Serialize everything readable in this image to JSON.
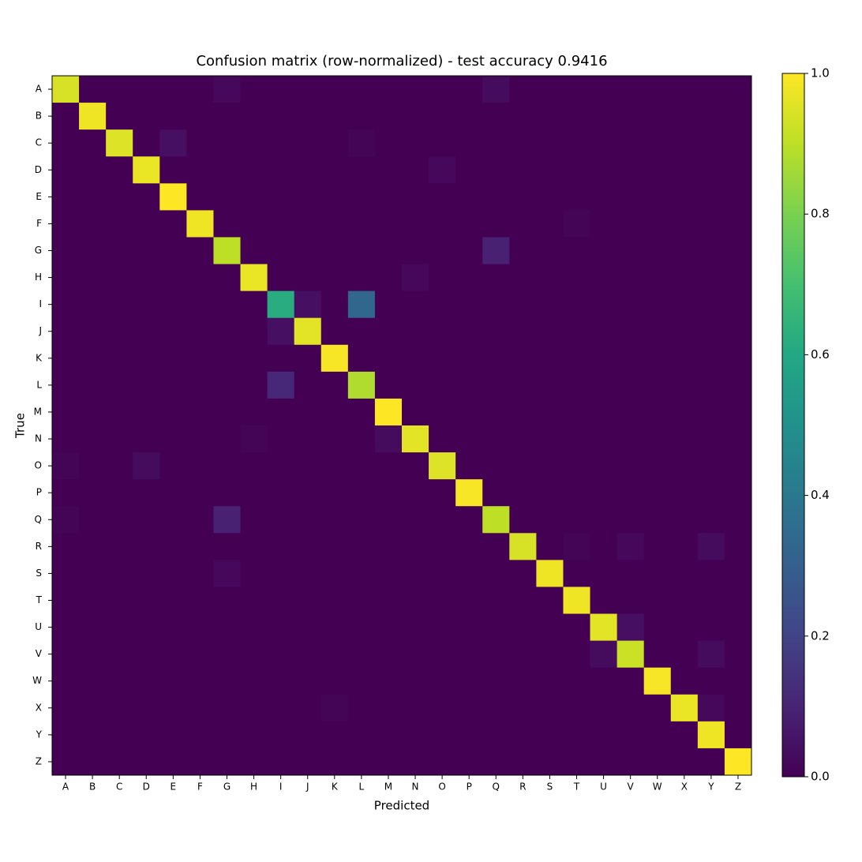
{
  "chart_data": {
    "type": "heatmap",
    "title": "Confusion matrix (row-normalized) - test accuracy 0.9416",
    "xlabel": "Predicted",
    "ylabel": "True",
    "x_categories": [
      "A",
      "B",
      "C",
      "D",
      "E",
      "F",
      "G",
      "H",
      "I",
      "J",
      "K",
      "L",
      "M",
      "N",
      "O",
      "P",
      "Q",
      "R",
      "S",
      "T",
      "U",
      "V",
      "W",
      "X",
      "Y",
      "Z"
    ],
    "y_categories": [
      "A",
      "B",
      "C",
      "D",
      "E",
      "F",
      "G",
      "H",
      "I",
      "J",
      "K",
      "L",
      "M",
      "N",
      "O",
      "P",
      "Q",
      "R",
      "S",
      "T",
      "U",
      "V",
      "W",
      "X",
      "Y",
      "Z"
    ],
    "colormap": "viridis",
    "zlim": [
      0,
      1
    ],
    "zticks": [
      {
        "value": 0,
        "label": "0.0"
      },
      0.2,
      0.4,
      0.6,
      0.8,
      {
        "value": 1,
        "label": "1.0"
      }
    ],
    "values": [
      [
        0.94,
        0,
        0,
        0,
        0,
        0,
        0.02,
        0,
        0,
        0,
        0,
        0,
        0,
        0,
        0,
        0,
        0.03,
        0,
        0,
        0,
        0,
        0,
        0,
        0,
        0,
        0
      ],
      [
        0,
        0.98,
        0,
        0,
        0,
        0,
        0,
        0,
        0,
        0,
        0,
        0,
        0,
        0,
        0,
        0,
        0,
        0,
        0,
        0,
        0,
        0,
        0,
        0,
        0,
        0
      ],
      [
        0,
        0,
        0.95,
        0,
        0.04,
        0,
        0,
        0,
        0,
        0,
        0,
        0.01,
        0,
        0,
        0,
        0,
        0,
        0,
        0,
        0,
        0,
        0,
        0,
        0,
        0,
        0
      ],
      [
        0,
        0,
        0,
        0.97,
        0,
        0,
        0,
        0,
        0,
        0,
        0,
        0,
        0,
        0,
        0.02,
        0,
        0,
        0,
        0,
        0,
        0,
        0,
        0,
        0,
        0,
        0
      ],
      [
        0,
        0,
        0,
        0,
        1.0,
        0,
        0,
        0,
        0,
        0,
        0,
        0,
        0,
        0,
        0,
        0,
        0,
        0,
        0,
        0,
        0,
        0,
        0,
        0,
        0,
        0
      ],
      [
        0,
        0,
        0,
        0,
        0,
        0.98,
        0,
        0,
        0,
        0,
        0,
        0,
        0,
        0,
        0,
        0,
        0,
        0,
        0,
        0.01,
        0,
        0,
        0,
        0,
        0,
        0
      ],
      [
        0,
        0,
        0,
        0,
        0,
        0,
        0.9,
        0,
        0,
        0,
        0,
        0,
        0,
        0,
        0,
        0,
        0.09,
        0,
        0,
        0,
        0,
        0,
        0,
        0,
        0,
        0
      ],
      [
        0,
        0,
        0,
        0,
        0,
        0,
        0,
        0.97,
        0,
        0,
        0,
        0,
        0,
        0.02,
        0,
        0,
        0,
        0,
        0,
        0,
        0,
        0,
        0,
        0,
        0,
        0
      ],
      [
        0,
        0,
        0,
        0,
        0,
        0,
        0,
        0,
        0.62,
        0.04,
        0,
        0.33,
        0,
        0,
        0,
        0,
        0,
        0,
        0,
        0,
        0,
        0,
        0,
        0,
        0,
        0
      ],
      [
        0,
        0,
        0,
        0,
        0,
        0,
        0,
        0,
        0.04,
        0.96,
        0,
        0,
        0,
        0,
        0,
        0,
        0,
        0,
        0,
        0,
        0,
        0,
        0,
        0,
        0,
        0
      ],
      [
        0,
        0,
        0,
        0,
        0,
        0,
        0,
        0,
        0,
        0,
        0.99,
        0,
        0,
        0,
        0,
        0,
        0,
        0,
        0,
        0,
        0,
        0,
        0,
        0,
        0,
        0
      ],
      [
        0,
        0,
        0,
        0,
        0,
        0,
        0,
        0,
        0.11,
        0,
        0,
        0.88,
        0,
        0,
        0,
        0,
        0,
        0,
        0,
        0,
        0,
        0,
        0,
        0,
        0,
        0
      ],
      [
        0,
        0,
        0,
        0,
        0,
        0,
        0,
        0,
        0,
        0,
        0,
        0,
        1.0,
        0,
        0,
        0,
        0,
        0,
        0,
        0,
        0,
        0,
        0,
        0,
        0,
        0
      ],
      [
        0,
        0,
        0,
        0,
        0,
        0,
        0,
        0.01,
        0,
        0,
        0,
        0,
        0.03,
        0.96,
        0,
        0,
        0,
        0,
        0,
        0,
        0,
        0,
        0,
        0,
        0,
        0
      ],
      [
        0.01,
        0,
        0,
        0.03,
        0,
        0,
        0,
        0,
        0,
        0,
        0,
        0,
        0,
        0,
        0.95,
        0,
        0,
        0,
        0,
        0,
        0,
        0,
        0,
        0,
        0,
        0
      ],
      [
        0,
        0,
        0,
        0,
        0,
        0,
        0,
        0,
        0,
        0,
        0,
        0,
        0,
        0,
        0,
        0.99,
        0,
        0,
        0,
        0,
        0,
        0,
        0,
        0,
        0,
        0
      ],
      [
        0.01,
        0,
        0,
        0,
        0,
        0,
        0.09,
        0,
        0,
        0,
        0,
        0,
        0,
        0,
        0,
        0,
        0.9,
        0,
        0,
        0,
        0,
        0,
        0,
        0,
        0,
        0
      ],
      [
        0,
        0,
        0,
        0,
        0,
        0,
        0,
        0,
        0,
        0,
        0,
        0,
        0,
        0,
        0,
        0,
        0,
        0.94,
        0,
        0.01,
        0,
        0.02,
        0,
        0,
        0.03,
        0
      ],
      [
        0,
        0,
        0,
        0,
        0,
        0,
        0.02,
        0,
        0,
        0,
        0,
        0,
        0,
        0,
        0,
        0,
        0,
        0,
        0.98,
        0,
        0,
        0,
        0,
        0,
        0,
        0
      ],
      [
        0,
        0,
        0,
        0,
        0,
        0,
        0,
        0,
        0,
        0,
        0,
        0,
        0,
        0,
        0,
        0,
        0,
        0,
        0,
        0.98,
        0,
        0,
        0,
        0,
        0,
        0
      ],
      [
        0,
        0,
        0,
        0,
        0,
        0,
        0,
        0,
        0,
        0,
        0,
        0,
        0,
        0,
        0,
        0,
        0,
        0,
        0,
        0,
        0.96,
        0.04,
        0,
        0,
        0,
        0
      ],
      [
        0,
        0,
        0,
        0,
        0,
        0,
        0,
        0,
        0,
        0,
        0,
        0,
        0,
        0,
        0,
        0,
        0,
        0,
        0,
        0,
        0.03,
        0.92,
        0,
        0,
        0.03,
        0
      ],
      [
        0,
        0,
        0,
        0,
        0,
        0,
        0,
        0,
        0,
        0,
        0,
        0,
        0,
        0,
        0,
        0,
        0,
        0,
        0,
        0,
        0,
        0,
        0.99,
        0,
        0,
        0
      ],
      [
        0,
        0,
        0,
        0,
        0,
        0,
        0,
        0,
        0,
        0,
        0.01,
        0,
        0,
        0,
        0,
        0,
        0,
        0,
        0,
        0,
        0,
        0,
        0,
        0.97,
        0.02,
        0
      ],
      [
        0,
        0,
        0,
        0,
        0,
        0,
        0,
        0,
        0,
        0,
        0,
        0,
        0,
        0,
        0,
        0,
        0,
        0,
        0,
        0,
        0,
        0,
        0,
        0,
        0.98,
        0
      ],
      [
        0,
        0,
        0,
        0,
        0,
        0,
        0,
        0,
        0,
        0,
        0,
        0,
        0,
        0,
        0,
        0,
        0,
        0,
        0,
        0,
        0,
        0,
        0,
        0,
        0,
        1.0
      ]
    ]
  }
}
